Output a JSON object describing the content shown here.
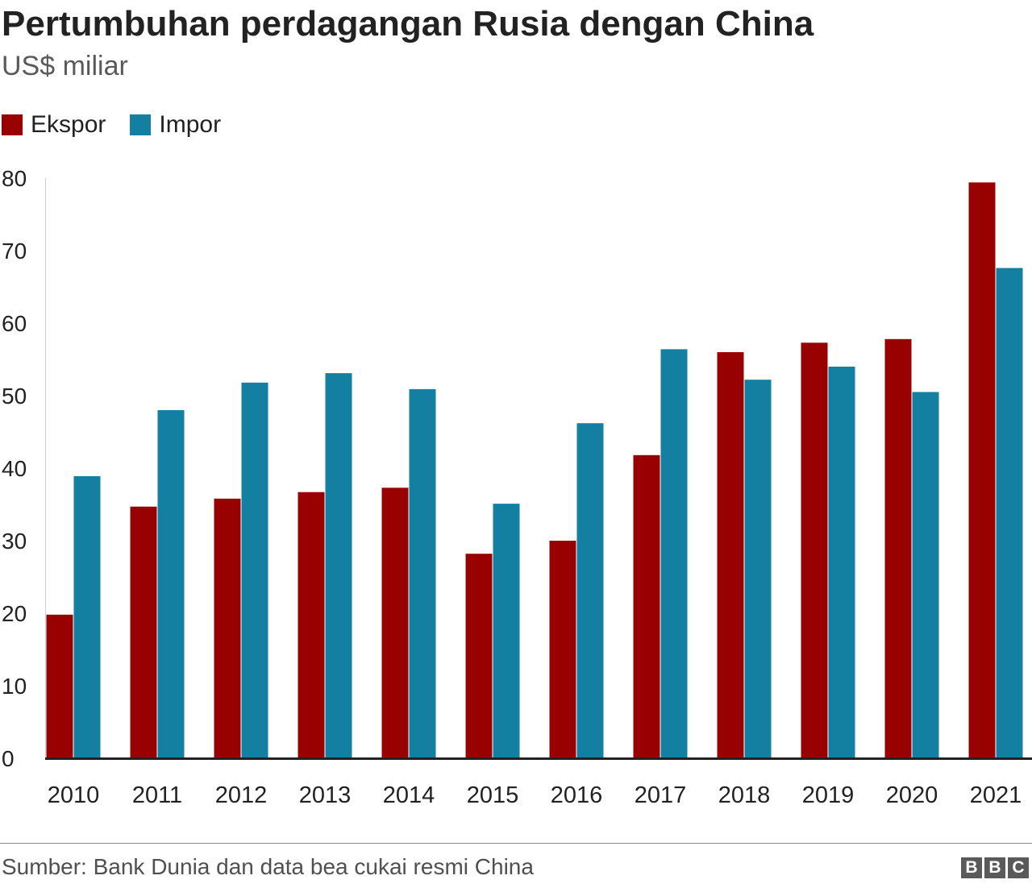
{
  "chart_data": {
    "type": "bar",
    "title": "Pertumbuhan perdagangan Rusia dengan China",
    "subtitle": "US$ miliar",
    "categories": [
      "2010",
      "2011",
      "2012",
      "2013",
      "2014",
      "2015",
      "2016",
      "2017",
      "2018",
      "2019",
      "2020",
      "2021"
    ],
    "series": [
      {
        "name": "Ekspor",
        "color": "#990000",
        "values": [
          19.8,
          34.7,
          35.8,
          36.7,
          37.3,
          28.2,
          30.0,
          41.8,
          56.0,
          57.3,
          57.8,
          79.4
        ]
      },
      {
        "name": "Impor",
        "color": "#1380A1",
        "values": [
          38.9,
          48.0,
          51.8,
          53.1,
          50.9,
          35.1,
          46.2,
          56.4,
          52.2,
          54.0,
          50.5,
          67.6
        ]
      }
    ],
    "yticks": [
      "0",
      "10",
      "20",
      "30",
      "40",
      "50",
      "60",
      "70",
      "80"
    ],
    "ylim": [
      0,
      80
    ],
    "xlabel": "",
    "ylabel": "",
    "grid": false,
    "legend_position": "top-left"
  },
  "footer": {
    "source": "Sumber: Bank Dunia dan data bea cukai resmi China",
    "logo": [
      "B",
      "B",
      "C"
    ]
  }
}
